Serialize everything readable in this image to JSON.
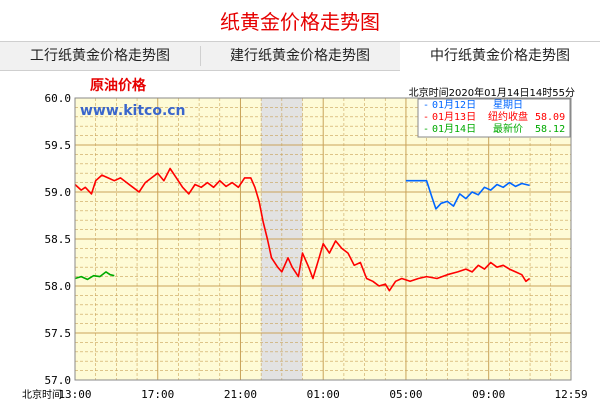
{
  "page": {
    "title": "纸黄金价格走势图",
    "tabs": [
      {
        "label": "工行纸黄金价格走势图",
        "active": false
      },
      {
        "label": "建行纸黄金价格走势图",
        "active": false
      },
      {
        "label": "中行纸黄金价格走势图",
        "active": true
      }
    ]
  },
  "chart_data": {
    "type": "line",
    "title": "原油价格",
    "watermark": "www.kitco.cn",
    "timestamp": "北京时间2020年01月14日14时55分",
    "xlabel": "北京时间",
    "x_ticks": [
      "13:00",
      "17:00",
      "21:00",
      "01:00",
      "05:00",
      "09:00",
      "12:59"
    ],
    "y_ticks": [
      "60.0",
      "59.5",
      "59.0",
      "58.5",
      "58.0",
      "57.5",
      "57.0"
    ],
    "ylim": [
      57.0,
      60.0
    ],
    "xlim_hours": [
      0,
      23.98
    ],
    "grid": true,
    "shaded_band": {
      "from": "22:00",
      "to": "00:00"
    },
    "legend_placement": "top-right",
    "legend": [
      {
        "label": "01月12日",
        "value_label": "星期日",
        "value": "",
        "color": "#0066ff"
      },
      {
        "label": "01月13日",
        "value_label": "纽约收盘",
        "value": "58.09",
        "color": "#ff0000"
      },
      {
        "label": "01月14日",
        "value_label": "最新价",
        "value": "58.12",
        "color": "#00aa00"
      }
    ],
    "series": [
      {
        "name": "01月12日",
        "color": "#0066ff",
        "points": [
          [
            16.0,
            59.12
          ],
          [
            16.5,
            59.12
          ],
          [
            17.0,
            59.12
          ],
          [
            17.25,
            58.95
          ],
          [
            17.45,
            58.82
          ],
          [
            17.7,
            58.88
          ],
          [
            18.0,
            58.9
          ],
          [
            18.3,
            58.85
          ],
          [
            18.6,
            58.98
          ],
          [
            18.9,
            58.93
          ],
          [
            19.2,
            59.0
          ],
          [
            19.5,
            58.97
          ],
          [
            19.8,
            59.05
          ],
          [
            20.1,
            59.02
          ],
          [
            20.4,
            59.08
          ],
          [
            20.7,
            59.05
          ],
          [
            21.0,
            59.1
          ],
          [
            21.3,
            59.06
          ],
          [
            21.6,
            59.09
          ],
          [
            21.98,
            59.07
          ]
        ]
      },
      {
        "name": "01月13日",
        "color": "#ff0000",
        "points": [
          [
            0.0,
            59.08
          ],
          [
            0.3,
            59.02
          ],
          [
            0.5,
            59.05
          ],
          [
            0.8,
            58.98
          ],
          [
            1.0,
            59.12
          ],
          [
            1.3,
            59.18
          ],
          [
            1.6,
            59.15
          ],
          [
            1.9,
            59.12
          ],
          [
            2.2,
            59.15
          ],
          [
            2.5,
            59.1
          ],
          [
            2.8,
            59.05
          ],
          [
            3.1,
            59.0
          ],
          [
            3.4,
            59.1
          ],
          [
            3.7,
            59.15
          ],
          [
            4.0,
            59.2
          ],
          [
            4.3,
            59.12
          ],
          [
            4.6,
            59.25
          ],
          [
            4.9,
            59.15
          ],
          [
            5.2,
            59.05
          ],
          [
            5.5,
            58.98
          ],
          [
            5.8,
            59.08
          ],
          [
            6.1,
            59.05
          ],
          [
            6.4,
            59.1
          ],
          [
            6.7,
            59.05
          ],
          [
            7.0,
            59.12
          ],
          [
            7.3,
            59.06
          ],
          [
            7.6,
            59.1
          ],
          [
            7.9,
            59.05
          ],
          [
            8.2,
            59.15
          ],
          [
            8.5,
            59.15
          ],
          [
            8.7,
            59.05
          ],
          [
            8.9,
            58.9
          ],
          [
            9.1,
            58.68
          ],
          [
            9.3,
            58.5
          ],
          [
            9.5,
            58.3
          ],
          [
            9.8,
            58.2
          ],
          [
            10.0,
            58.15
          ],
          [
            10.3,
            58.3
          ],
          [
            10.5,
            58.2
          ],
          [
            10.8,
            58.1
          ],
          [
            11.0,
            58.35
          ],
          [
            11.3,
            58.2
          ],
          [
            11.5,
            58.08
          ],
          [
            11.8,
            58.3
          ],
          [
            12.0,
            58.45
          ],
          [
            12.3,
            58.35
          ],
          [
            12.6,
            58.48
          ],
          [
            12.9,
            58.4
          ],
          [
            13.2,
            58.35
          ],
          [
            13.5,
            58.22
          ],
          [
            13.8,
            58.25
          ],
          [
            14.1,
            58.08
          ],
          [
            14.4,
            58.05
          ],
          [
            14.7,
            58.0
          ],
          [
            15.0,
            58.02
          ],
          [
            15.2,
            57.95
          ],
          [
            15.5,
            58.05
          ],
          [
            15.8,
            58.08
          ],
          [
            16.2,
            58.05
          ],
          [
            16.6,
            58.08
          ],
          [
            17.0,
            58.1
          ],
          [
            17.5,
            58.08
          ],
          [
            18.0,
            58.12
          ],
          [
            18.5,
            58.15
          ],
          [
            18.9,
            58.18
          ],
          [
            19.2,
            58.15
          ],
          [
            19.5,
            58.22
          ],
          [
            19.8,
            58.18
          ],
          [
            20.1,
            58.25
          ],
          [
            20.4,
            58.2
          ],
          [
            20.7,
            58.22
          ],
          [
            21.0,
            58.18
          ],
          [
            21.3,
            58.15
          ],
          [
            21.6,
            58.12
          ],
          [
            21.8,
            58.05
          ],
          [
            21.98,
            58.08
          ]
        ]
      },
      {
        "name": "01月14日",
        "color": "#00aa00",
        "points": [
          [
            0.0,
            58.08
          ],
          [
            0.3,
            58.1
          ],
          [
            0.6,
            58.07
          ],
          [
            0.9,
            58.11
          ],
          [
            1.2,
            58.1
          ],
          [
            1.5,
            58.15
          ],
          [
            1.7,
            58.12
          ],
          [
            1.9,
            58.11
          ]
        ]
      }
    ]
  }
}
